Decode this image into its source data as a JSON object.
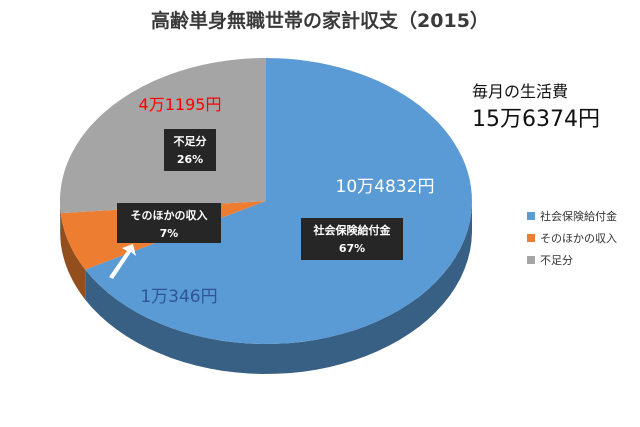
{
  "chart_data": {
    "type": "pie",
    "title": "高齢単身無職世帯の家計収支（2015）",
    "slices": [
      {
        "name": "社会保険給付金",
        "value": 104832,
        "amount_label": "10万4832円",
        "percent_label": "67%",
        "color": "#5b9bd5"
      },
      {
        "name": "そのほかの収入",
        "value": 10346,
        "amount_label": "1万346円",
        "percent_label": "7%",
        "color": "#ed7d31"
      },
      {
        "name": "不足分",
        "value": 41195,
        "amount_label": "4万1195円",
        "percent_label": "26%",
        "color": "#a5a5a5"
      }
    ],
    "legend_position": "right"
  },
  "summary": {
    "label": "毎月の生活費",
    "value": "15万6374円"
  },
  "colors": {
    "shortfall_amount": "#ff0000",
    "data_label_box": "#262626"
  }
}
